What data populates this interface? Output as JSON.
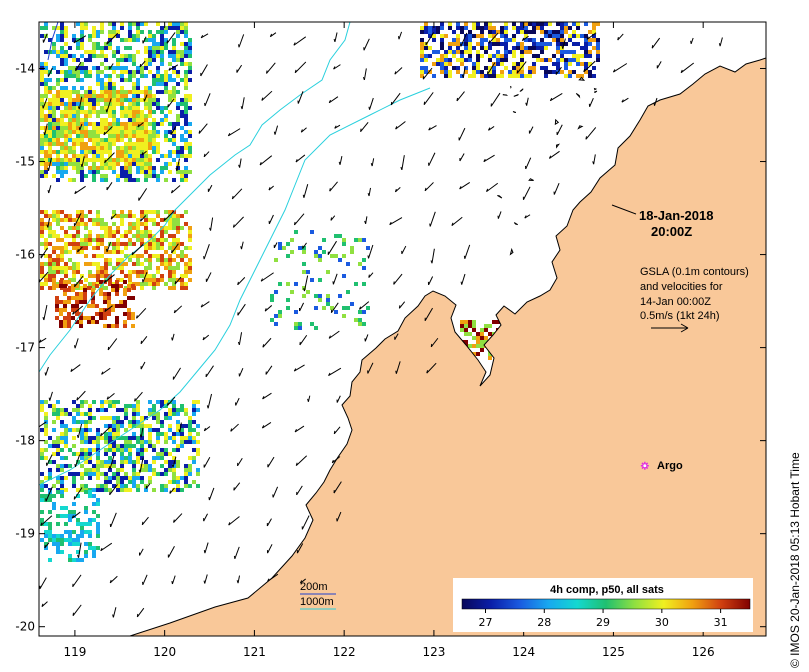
{
  "map": {
    "lon_range": [
      118.6,
      126.7
    ],
    "lat_range": [
      -20.1,
      -13.5
    ],
    "lon_ticks": [
      119,
      120,
      121,
      122,
      123,
      124,
      125,
      126
    ],
    "lat_ticks": [
      -14,
      -15,
      -16,
      -17,
      -18,
      -19,
      -20
    ],
    "lon_tick_labels": [
      "119",
      "120",
      "121",
      "122",
      "123",
      "124",
      "125",
      "126"
    ],
    "lat_tick_labels": [
      "-14",
      "-15",
      "-16",
      "-17",
      "-18",
      "-19",
      "-20"
    ],
    "colors": {
      "land": "#f9c899",
      "ocean": "#ffffff",
      "contour_200m": "#1f3fd0",
      "contour_1000m": "#29d0dd",
      "argo": "#e02ee0"
    }
  },
  "annotations": {
    "date_line1": "18-Jan-2018",
    "date_line2": "20:00Z",
    "gsla_line1": "GSLA (0.1m contours)",
    "gsla_line2": "and velocities for",
    "gsla_line3": "14-Jan 00:00Z",
    "gsla_line4": "0.5m/s (1kt 24h)"
  },
  "contour_legend": {
    "label_200m": "200m",
    "label_1000m": "1000m"
  },
  "argo": {
    "label": "Argo",
    "lon": 125.35,
    "lat": -18.27
  },
  "colorbar": {
    "title": "4h comp, p50, all sats",
    "range": [
      26.6,
      31.5
    ],
    "ticks": [
      27,
      28,
      29,
      30,
      31
    ],
    "tick_labels": [
      "27",
      "28",
      "29",
      "30",
      "31"
    ],
    "stops": [
      "#08085a",
      "#0a1ea8",
      "#1a5ae0",
      "#18a8f0",
      "#14d8d0",
      "#20c070",
      "#90e040",
      "#f0f020",
      "#f0a010",
      "#d04010",
      "#800000"
    ]
  },
  "credit": "© IMOS 20-Jan-2018 05:13 Hobart Time"
}
